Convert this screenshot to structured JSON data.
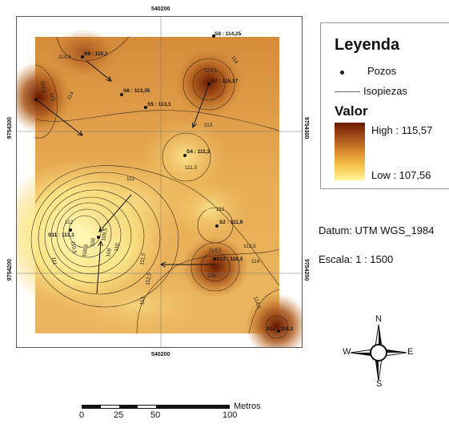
{
  "coords": {
    "top_x": "540200",
    "bottom_x": "540200",
    "left_y_upper": "9754300",
    "left_y_lower": "9754200",
    "right_y_upper": "9754300",
    "right_y_lower": "9754200"
  },
  "wells": [
    {
      "label": "S8 : 114,25"
    },
    {
      "label": "S9 : 115,1"
    },
    {
      "label": "S7 : 115,17"
    },
    {
      "label": "S6 : 113,35"
    },
    {
      "label": "S5 : 113,1"
    },
    {
      "label": "S4 : 111,3"
    },
    {
      "label": "S2 : 111,9"
    },
    {
      "label": "S11 : 113,1"
    },
    {
      "label": "S13 : 116,3"
    },
    {
      "label": "S12 : 116,1"
    }
  ],
  "contours": [
    {
      "label": "114,5"
    },
    {
      "label": "114,5"
    },
    {
      "label": "114"
    },
    {
      "label": "114,5"
    },
    {
      "label": "114"
    },
    {
      "label": "115"
    },
    {
      "label": "113"
    },
    {
      "label": "111,5"
    },
    {
      "label": "112"
    },
    {
      "label": "112"
    },
    {
      "label": "112"
    },
    {
      "label": "110,5"
    },
    {
      "label": "109,5"
    },
    {
      "label": "108,5"
    },
    {
      "label": "109"
    },
    {
      "label": "108"
    },
    {
      "label": "110"
    },
    {
      "label": "111"
    },
    {
      "label": "111,5"
    },
    {
      "label": "112,5"
    },
    {
      "label": "113"
    },
    {
      "label": "113,5"
    },
    {
      "label": "114,5"
    },
    {
      "label": "114"
    },
    {
      "label": "114,5"
    },
    {
      "label": "115"
    }
  ],
  "legend": {
    "title": "Leyenda",
    "wells_label": "Pozos",
    "isolines_label": "Isopiezas",
    "value_title": "Valor",
    "high_label": "High : 115,57",
    "low_label": "Low : 107,56",
    "colors": {
      "high": "#6b1a00",
      "mid": "#d98a2b",
      "low": "#fff59a"
    }
  },
  "info": {
    "datum": "Datum: UTM WGS_1984",
    "scale": "Escala: 1 : 1500"
  },
  "scalebar": {
    "unit": "Metros",
    "ticks": [
      "0",
      "25",
      "50",
      "100"
    ]
  },
  "compass": {
    "n": "N",
    "s": "S",
    "e": "E",
    "w": "W"
  }
}
